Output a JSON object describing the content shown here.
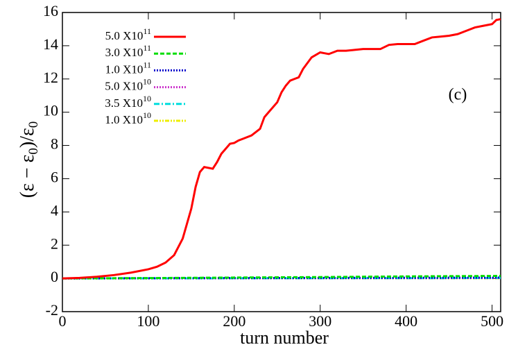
{
  "chart_data": {
    "type": "line",
    "xlabel": "turn number",
    "ylabel": [
      "(ε − ε",
      "0",
      ")/ε",
      "0"
    ],
    "annotation": "(c)",
    "xlim": [
      0,
      510
    ],
    "ylim": [
      -2,
      16
    ],
    "xticks": [
      0,
      100,
      200,
      300,
      400,
      500
    ],
    "yticks": [
      -2,
      0,
      2,
      4,
      6,
      8,
      10,
      12,
      14,
      16
    ],
    "legend": "upper left",
    "series": [
      {
        "name": "5.0 X10",
        "name_sup": "11",
        "color": "#ff0000",
        "dash": "solid",
        "x": [
          0,
          20,
          40,
          60,
          80,
          100,
          110,
          120,
          130,
          140,
          150,
          155,
          160,
          165,
          170,
          175,
          180,
          185,
          190,
          195,
          200,
          205,
          210,
          220,
          230,
          235,
          240,
          250,
          255,
          260,
          265,
          270,
          275,
          280,
          290,
          300,
          305,
          310,
          320,
          330,
          340,
          350,
          360,
          370,
          380,
          390,
          400,
          410,
          420,
          430,
          440,
          450,
          460,
          470,
          480,
          490,
          500,
          505,
          510
        ],
        "values": [
          0,
          0.03,
          0.1,
          0.2,
          0.35,
          0.55,
          0.7,
          0.95,
          1.4,
          2.4,
          4.2,
          5.5,
          6.4,
          6.7,
          6.65,
          6.6,
          7.0,
          7.5,
          7.8,
          8.1,
          8.15,
          8.3,
          8.4,
          8.6,
          9.0,
          9.7,
          10.0,
          10.6,
          11.2,
          11.6,
          11.9,
          12.0,
          12.1,
          12.6,
          13.3,
          13.6,
          13.55,
          13.5,
          13.7,
          13.7,
          13.75,
          13.8,
          13.8,
          13.8,
          14.05,
          14.1,
          14.1,
          14.1,
          14.3,
          14.5,
          14.55,
          14.6,
          14.7,
          14.9,
          15.1,
          15.2,
          15.3,
          15.55,
          15.6
        ]
      },
      {
        "name": "3.0 X10",
        "name_sup": "11",
        "color": "#00dd00",
        "dash": "dashed",
        "x": [
          0,
          100,
          200,
          300,
          400,
          510
        ],
        "values": [
          0,
          0.02,
          0.05,
          0.08,
          0.12,
          0.15
        ]
      },
      {
        "name": "1.0 X10",
        "name_sup": "11",
        "color": "#0000cc",
        "dash": "dotted",
        "x": [
          0,
          100,
          200,
          300,
          400,
          510
        ],
        "values": [
          0,
          0.01,
          0.02,
          0.03,
          0.04,
          0.05
        ]
      },
      {
        "name": "5.0 X10",
        "name_sup": "10",
        "color": "#cc33cc",
        "dash": "dotted",
        "x": [
          0,
          100,
          200,
          300,
          400,
          510
        ],
        "values": [
          0,
          0.005,
          0.01,
          0.015,
          0.02,
          0.025
        ]
      },
      {
        "name": "3.5 X10",
        "name_sup": "10",
        "color": "#00dddd",
        "dash": "dashdot",
        "x": [
          0,
          100,
          200,
          300,
          400,
          510
        ],
        "values": [
          0,
          0.004,
          0.008,
          0.012,
          0.016,
          0.02
        ]
      },
      {
        "name": "1.0 X10",
        "name_sup": "10",
        "color": "#eeee00",
        "dash": "dashdotdot",
        "x": [
          0,
          100,
          200,
          300,
          400,
          510
        ],
        "values": [
          0,
          0.002,
          0.004,
          0.006,
          0.008,
          0.01
        ]
      }
    ]
  }
}
